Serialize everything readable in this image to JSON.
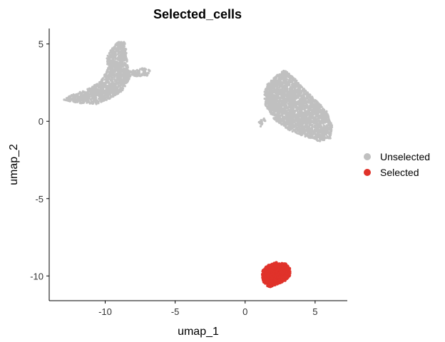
{
  "chart_data": {
    "type": "scatter",
    "title": "Selected_cells",
    "xlabel": "umap_1",
    "ylabel": "umap_2",
    "xlim": [
      -14.0,
      7.3
    ],
    "ylim": [
      -11.6,
      6.0
    ],
    "x_ticks": [
      -10,
      -5,
      0,
      5
    ],
    "y_ticks": [
      5,
      0,
      -5,
      -10
    ],
    "x_tick_labels": [
      "-10",
      "-5",
      "0",
      "5"
    ],
    "y_tick_labels": [
      "5",
      "0",
      "-5",
      "-10"
    ],
    "grid": false,
    "legend": {
      "position": "right",
      "entries": [
        {
          "label": "Unselected",
          "color": "#c0c0c0"
        },
        {
          "label": "Selected",
          "color": "#e0322a"
        }
      ]
    },
    "series": [
      {
        "name": "Unselected",
        "color": "#c0c0c0",
        "clusters": [
          {
            "shape": "polygon",
            "n": 1400,
            "polygon": [
              [
                -13.0,
                1.4
              ],
              [
                -12.4,
                1.7
              ],
              [
                -11.2,
                2.1
              ],
              [
                -10.3,
                2.6
              ],
              [
                -9.8,
                3.4
              ],
              [
                -9.9,
                4.1
              ],
              [
                -9.6,
                4.6
              ],
              [
                -9.0,
                5.25
              ],
              [
                -8.6,
                5.1
              ],
              [
                -8.5,
                4.6
              ],
              [
                -8.4,
                3.6
              ],
              [
                -8.2,
                2.9
              ],
              [
                -8.7,
                2.0
              ],
              [
                -9.6,
                1.5
              ],
              [
                -10.6,
                1.1
              ],
              [
                -11.7,
                1.15
              ],
              [
                -12.6,
                1.3
              ]
            ]
          },
          {
            "shape": "polygon",
            "n": 120,
            "polygon": [
              [
                -9.0,
                3.4
              ],
              [
                -8.0,
                3.3
              ],
              [
                -7.2,
                3.45
              ],
              [
                -6.6,
                3.2
              ],
              [
                -7.0,
                2.95
              ],
              [
                -8.0,
                2.9
              ],
              [
                -8.8,
                3.0
              ]
            ]
          },
          {
            "shape": "polygon",
            "n": 2600,
            "polygon": [
              [
                1.6,
                2.4
              ],
              [
                2.3,
                3.0
              ],
              [
                2.8,
                3.3
              ],
              [
                3.4,
                2.9
              ],
              [
                4.2,
                2.1
              ],
              [
                5.0,
                1.4
              ],
              [
                5.8,
                0.7
              ],
              [
                6.25,
                -0.3
              ],
              [
                6.1,
                -1.1
              ],
              [
                5.3,
                -1.3
              ],
              [
                4.3,
                -1.0
              ],
              [
                3.2,
                -0.6
              ],
              [
                2.1,
                0.1
              ],
              [
                1.45,
                1.0
              ],
              [
                1.35,
                1.8
              ]
            ]
          },
          {
            "shape": "polygon",
            "n": 20,
            "polygon": [
              [
                0.8,
                -0.1
              ],
              [
                1.3,
                0.2
              ],
              [
                1.5,
                0.1
              ],
              [
                1.1,
                -0.35
              ]
            ]
          }
        ]
      },
      {
        "name": "Selected",
        "color": "#e0322a",
        "clusters": [
          {
            "shape": "polygon",
            "n": 1000,
            "polygon": [
              [
                1.25,
                -9.6
              ],
              [
                1.6,
                -9.3
              ],
              [
                2.2,
                -9.1
              ],
              [
                2.9,
                -9.2
              ],
              [
                3.2,
                -9.5
              ],
              [
                3.25,
                -10.0
              ],
              [
                2.9,
                -10.3
              ],
              [
                2.3,
                -10.55
              ],
              [
                1.7,
                -10.75
              ],
              [
                1.3,
                -10.4
              ],
              [
                1.2,
                -10.0
              ]
            ]
          }
        ]
      }
    ]
  }
}
